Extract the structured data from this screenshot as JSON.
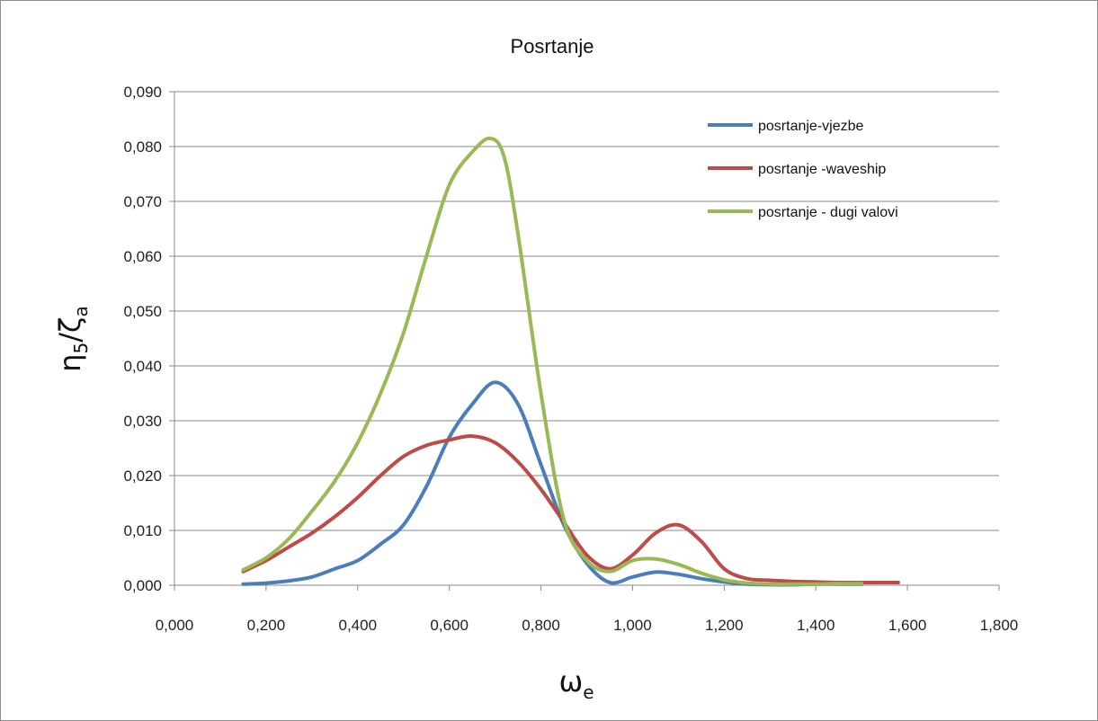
{
  "chart_data": {
    "type": "line",
    "title": "Posrtanje",
    "xlabel": "ω",
    "xlabel_sub": "e",
    "ylabel_parts": {
      "a": "η",
      "a_sub": "5",
      "sep": "/",
      "b": "ζ",
      "b_sub": "a"
    },
    "xlim": [
      0,
      1.8
    ],
    "ylim": [
      0,
      0.09
    ],
    "x_ticks": [
      0,
      0.2,
      0.4,
      0.6,
      0.8,
      1.0,
      1.2,
      1.4,
      1.6,
      1.8
    ],
    "x_tick_labels": [
      "0,000",
      "0,200",
      "0,400",
      "0,600",
      "0,800",
      "1,000",
      "1,200",
      "1,400",
      "1,600",
      "1,800"
    ],
    "y_ticks": [
      0,
      0.01,
      0.02,
      0.03,
      0.04,
      0.05,
      0.06,
      0.07,
      0.08,
      0.09
    ],
    "y_tick_labels": [
      "0,000",
      "0,010",
      "0,020",
      "0,030",
      "0,040",
      "0,050",
      "0,060",
      "0,070",
      "0,080",
      "0,090"
    ],
    "grid": {
      "horizontal": true,
      "vertical": false
    },
    "legend_position": "top-right",
    "series": [
      {
        "name": "posrtanje-vjezbe",
        "color": "#4a7ebb",
        "x": [
          0.15,
          0.2,
          0.25,
          0.3,
          0.35,
          0.4,
          0.45,
          0.5,
          0.55,
          0.6,
          0.65,
          0.7,
          0.75,
          0.8,
          0.85,
          0.9,
          0.95,
          1.0,
          1.05,
          1.1,
          1.15,
          1.2,
          1.25,
          1.3,
          1.35,
          1.4,
          1.45,
          1.5
        ],
        "y": [
          0.0002,
          0.0004,
          0.0008,
          0.0015,
          0.003,
          0.0045,
          0.0075,
          0.011,
          0.018,
          0.027,
          0.033,
          0.037,
          0.033,
          0.022,
          0.011,
          0.004,
          0.0005,
          0.0015,
          0.0024,
          0.002,
          0.0012,
          0.0006,
          0.0002,
          0.0001,
          0.0001,
          0.0002,
          0.0002,
          0.0002
        ]
      },
      {
        "name": "posrtanje -waveship",
        "color": "#be4b48",
        "x": [
          0.15,
          0.2,
          0.25,
          0.3,
          0.35,
          0.4,
          0.45,
          0.5,
          0.55,
          0.6,
          0.65,
          0.7,
          0.75,
          0.8,
          0.85,
          0.9,
          0.95,
          1.0,
          1.05,
          1.1,
          1.15,
          1.2,
          1.25,
          1.3,
          1.35,
          1.4,
          1.45,
          1.5,
          1.55,
          1.58
        ],
        "y": [
          0.0025,
          0.0045,
          0.007,
          0.0095,
          0.0125,
          0.016,
          0.02,
          0.0235,
          0.0255,
          0.0265,
          0.0272,
          0.026,
          0.0225,
          0.0175,
          0.0115,
          0.0055,
          0.003,
          0.0055,
          0.0095,
          0.011,
          0.008,
          0.003,
          0.0012,
          0.0009,
          0.0007,
          0.0006,
          0.0005,
          0.0005,
          0.0005,
          0.0005
        ]
      },
      {
        "name": "posrtanje - dugi valovi",
        "color": "#98b954",
        "x": [
          0.15,
          0.2,
          0.25,
          0.3,
          0.35,
          0.4,
          0.45,
          0.5,
          0.55,
          0.6,
          0.65,
          0.69,
          0.72,
          0.75,
          0.8,
          0.85,
          0.9,
          0.95,
          1.0,
          1.05,
          1.1,
          1.15,
          1.2,
          1.25,
          1.3,
          1.35,
          1.4,
          1.45,
          1.5
        ],
        "y": [
          0.0028,
          0.005,
          0.0085,
          0.0135,
          0.019,
          0.026,
          0.035,
          0.046,
          0.06,
          0.073,
          0.079,
          0.0815,
          0.078,
          0.064,
          0.035,
          0.012,
          0.0045,
          0.0025,
          0.0045,
          0.0048,
          0.0038,
          0.0022,
          0.001,
          0.0004,
          0.0002,
          0.0002,
          0.0002,
          0.0003,
          0.0003
        ]
      }
    ]
  }
}
